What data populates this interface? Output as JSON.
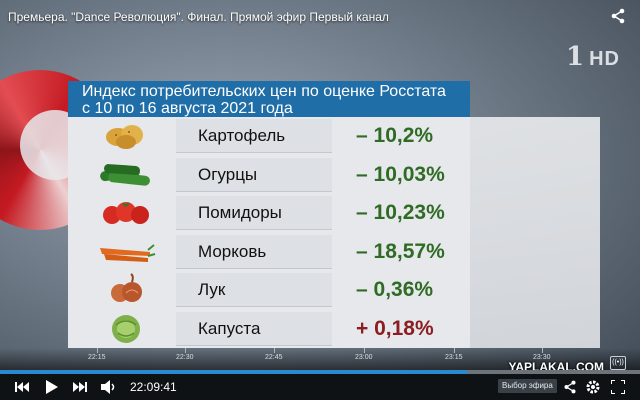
{
  "window": {
    "title": "Премьера. \"Dance Революция\". Финал. Прямой эфир Первый канал",
    "channel_logo_number": "1",
    "channel_logo_hd": "HD"
  },
  "panel": {
    "header_line1": "Индекс потребительских цен по оценке Росстата",
    "header_line2": "с 10 по 16 августа 2021 года",
    "colors": {
      "header": "#1f6ea8",
      "negative": "#2f6b24",
      "positive": "#8b1e23"
    },
    "rows": [
      {
        "icon": "potato-icon",
        "name": "Картофель",
        "value": "– 10,2%",
        "sign": "neg"
      },
      {
        "icon": "cucumber-icon",
        "name": "Огурцы",
        "value": "– 10,03%",
        "sign": "neg"
      },
      {
        "icon": "tomato-icon",
        "name": "Помидоры",
        "value": "– 10,23%",
        "sign": "neg"
      },
      {
        "icon": "carrot-icon",
        "name": "Морковь",
        "value": "– 18,57%",
        "sign": "neg"
      },
      {
        "icon": "onion-icon",
        "name": "Лук",
        "value": "– 0,36%",
        "sign": "neg"
      },
      {
        "icon": "cabbage-icon",
        "name": "Капуста",
        "value": "+ 0,18%",
        "sign": "pos"
      }
    ]
  },
  "timeline": {
    "ticks": [
      "22:15",
      "22:30",
      "22:45",
      "23:00",
      "23:15",
      "23:30"
    ],
    "watermark": "YAPLAKAL.COM",
    "progress_fraction": 0.73
  },
  "player": {
    "current_time": "22:09:41",
    "live_button": "Выбор эфира",
    "icons": [
      "previous-icon",
      "play-icon",
      "next-icon",
      "volume-icon",
      "share-icon",
      "gear-icon",
      "fullscreen-icon"
    ]
  }
}
